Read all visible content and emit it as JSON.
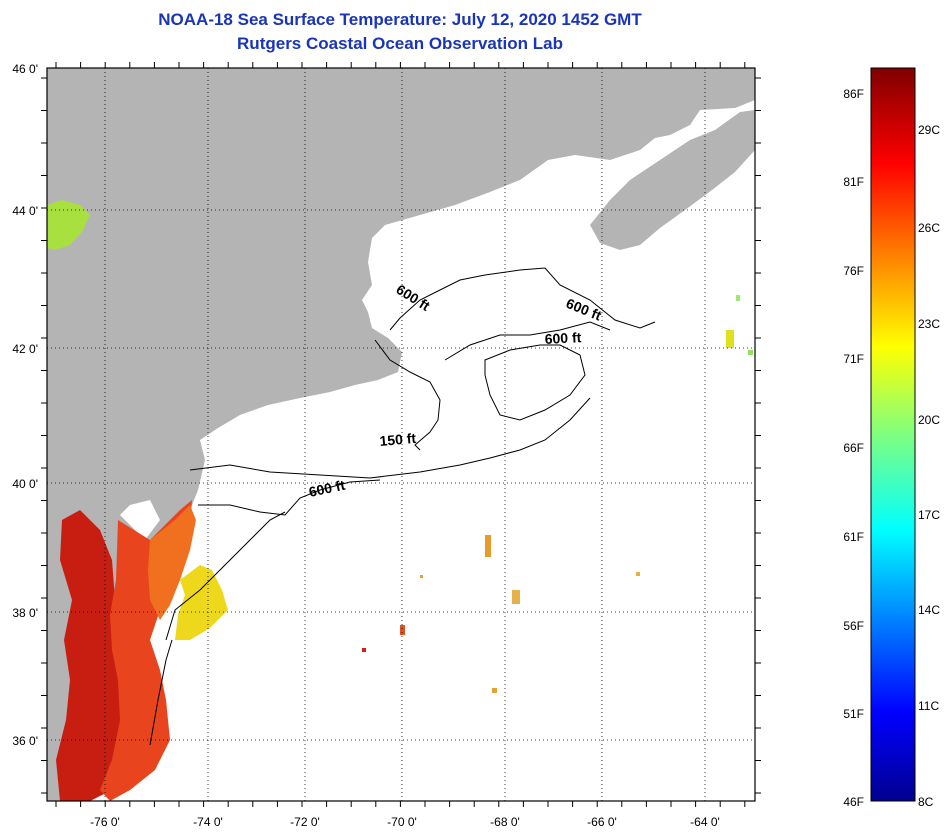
{
  "title": {
    "line1": "NOAA-18 Sea Surface Temperature:  July 12, 2020 1452 GMT",
    "line2": "Rutgers Coastal Ocean Observation Lab"
  },
  "axes": {
    "lon_labels": [
      "-76 0'",
      "-74 0'",
      "-72 0'",
      "-70 0'",
      "-68 0'",
      "-66 0'",
      "-64 0'"
    ],
    "lat_labels": [
      "46 0'",
      "44 0'",
      "42 0'",
      "40 0'",
      "38 0'",
      "36 0'"
    ]
  },
  "contours": [
    {
      "label": "600 ft",
      "id": "gom-west"
    },
    {
      "label": "600 ft",
      "id": "gom-east"
    },
    {
      "label": "600 ft",
      "id": "georges"
    },
    {
      "label": "150 ft",
      "id": "nantucket"
    },
    {
      "label": "600 ft",
      "id": "shelf"
    }
  ],
  "colorbar": {
    "fahrenheit": [
      "86F",
      "81F",
      "76F",
      "71F",
      "66F",
      "61F",
      "56F",
      "51F",
      "46F"
    ],
    "celsius": [
      "29C",
      "26C",
      "23C",
      "20C",
      "17C",
      "14C",
      "11C",
      "8C"
    ]
  },
  "colors": {
    "land": "#b4b4b4",
    "title": "#1a35b8",
    "warm": "#e8451e",
    "hot": "#c81e12",
    "yellow": "#eed81c"
  }
}
